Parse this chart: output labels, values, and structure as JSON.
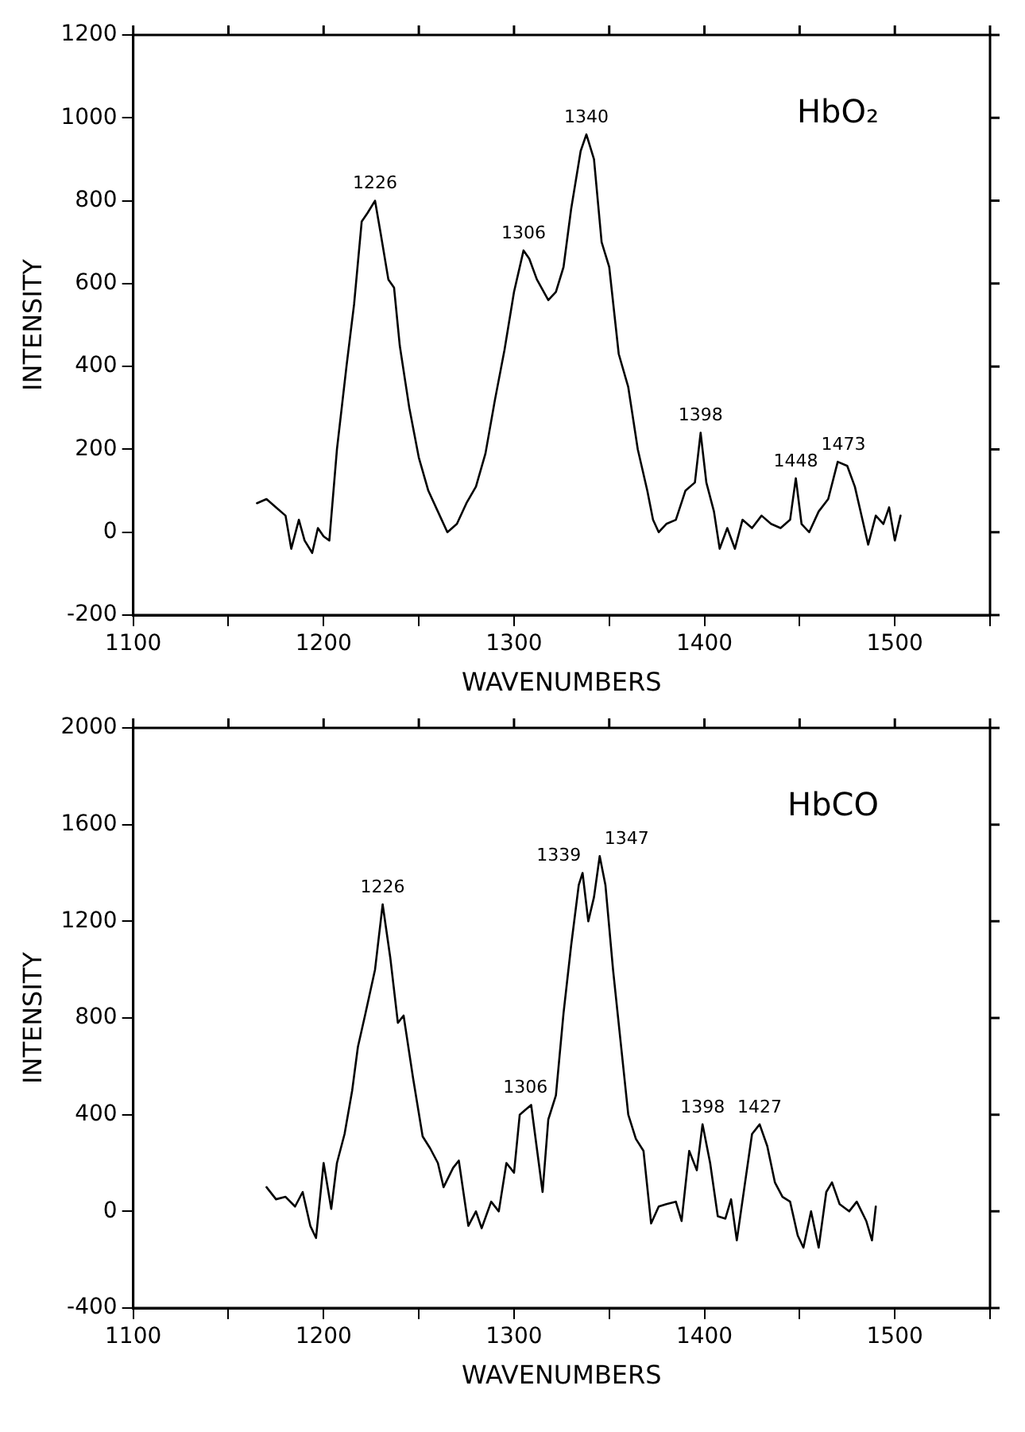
{
  "chart_data": [
    {
      "type": "line",
      "title": "HbO₂",
      "xlabel": "WAVENUMBERS",
      "ylabel": "INTENSITY",
      "xlim": [
        1100,
        1550
      ],
      "xticks": [
        1100,
        {
          "value": 1150,
          "label": null
        },
        1200,
        {
          "value": 1250,
          "label": null
        },
        1300,
        {
          "value": 1350,
          "label": null
        },
        1400,
        {
          "value": 1450,
          "label": null
        },
        1500,
        {
          "value": 1550,
          "label": null
        }
      ],
      "ylim": [
        -200,
        1200
      ],
      "yticks": [
        -200,
        0,
        200,
        400,
        600,
        800,
        1000,
        1200
      ],
      "grid": false,
      "legend": false,
      "series": [
        {
          "color": "#000000",
          "x": [
            1165,
            1170,
            1175,
            1180,
            1183,
            1187,
            1190,
            1194,
            1197,
            1200,
            1203,
            1207,
            1212,
            1216,
            1220,
            1223,
            1227,
            1230,
            1234,
            1237,
            1240,
            1245,
            1250,
            1255,
            1260,
            1265,
            1270,
            1275,
            1280,
            1285,
            1290,
            1295,
            1300,
            1305,
            1308,
            1312,
            1318,
            1322,
            1326,
            1330,
            1335,
            1338,
            1342,
            1346,
            1350,
            1355,
            1360,
            1365,
            1370,
            1373,
            1376,
            1380,
            1385,
            1390,
            1395,
            1398,
            1401,
            1405,
            1408,
            1412,
            1416,
            1420,
            1425,
            1430,
            1435,
            1440,
            1445,
            1448,
            1451,
            1455,
            1460,
            1465,
            1470,
            1475,
            1479,
            1483,
            1486,
            1490,
            1494,
            1497,
            1500,
            1503
          ],
          "values": [
            70,
            80,
            60,
            40,
            -40,
            30,
            -20,
            -50,
            10,
            -10,
            -20,
            200,
            400,
            550,
            750,
            770,
            800,
            720,
            610,
            590,
            450,
            300,
            180,
            100,
            50,
            0,
            20,
            70,
            110,
            190,
            320,
            440,
            580,
            680,
            660,
            610,
            560,
            580,
            640,
            780,
            920,
            960,
            900,
            700,
            640,
            430,
            350,
            200,
            100,
            30,
            0,
            20,
            30,
            100,
            120,
            240,
            120,
            50,
            -40,
            10,
            -40,
            30,
            10,
            40,
            20,
            10,
            30,
            130,
            20,
            0,
            50,
            80,
            170,
            160,
            110,
            30,
            -30,
            40,
            20,
            60,
            -20,
            40
          ]
        }
      ],
      "annotations": [
        {
          "text": "1226",
          "x": 1227,
          "y": 800
        },
        {
          "text": "1306",
          "x": 1305,
          "y": 680
        },
        {
          "text": "1340",
          "x": 1338,
          "y": 960
        },
        {
          "text": "1398",
          "x": 1398,
          "y": 240
        },
        {
          "text": "1448",
          "x": 1448,
          "y": 130
        },
        {
          "text": "1473",
          "x": 1473,
          "y": 170
        }
      ]
    },
    {
      "type": "line",
      "title": "HbCO",
      "xlabel": "WAVENUMBERS",
      "ylabel": "INTENSITY",
      "xlim": [
        1100,
        1550
      ],
      "xticks": [
        1100,
        {
          "value": 1150,
          "label": null
        },
        1200,
        {
          "value": 1250,
          "label": null
        },
        1300,
        {
          "value": 1350,
          "label": null
        },
        1400,
        {
          "value": 1450,
          "label": null
        },
        1500,
        {
          "value": 1550,
          "label": null
        }
      ],
      "ylim": [
        -400,
        2000
      ],
      "yticks": [
        -400,
        0,
        400,
        800,
        1200,
        1600,
        2000
      ],
      "grid": false,
      "legend": false,
      "series": [
        {
          "color": "#000000",
          "x": [
            1170,
            1175,
            1180,
            1185,
            1189,
            1193,
            1196,
            1200,
            1204,
            1207,
            1211,
            1215,
            1218,
            1222,
            1227,
            1231,
            1235,
            1239,
            1242,
            1247,
            1252,
            1256,
            1260,
            1263,
            1268,
            1271,
            1276,
            1280,
            1283,
            1288,
            1292,
            1296,
            1300,
            1303,
            1306,
            1309,
            1313,
            1315,
            1318,
            1322,
            1326,
            1330,
            1334,
            1336,
            1339,
            1342,
            1345,
            1348,
            1352,
            1356,
            1360,
            1364,
            1368,
            1372,
            1376,
            1380,
            1385,
            1388,
            1392,
            1396,
            1399,
            1403,
            1407,
            1411,
            1414,
            1417,
            1421,
            1425,
            1429,
            1433,
            1437,
            1441,
            1445,
            1449,
            1452,
            1456,
            1460,
            1464,
            1467,
            1471,
            1476,
            1480,
            1485,
            1488,
            1490
          ],
          "values": [
            100,
            50,
            60,
            20,
            80,
            -60,
            -110,
            200,
            10,
            200,
            320,
            500,
            680,
            820,
            1000,
            1270,
            1050,
            780,
            810,
            550,
            310,
            260,
            200,
            100,
            180,
            210,
            -60,
            0,
            -70,
            40,
            0,
            200,
            160,
            400,
            420,
            440,
            200,
            80,
            380,
            480,
            820,
            1100,
            1350,
            1400,
            1200,
            1300,
            1470,
            1350,
            1000,
            700,
            400,
            300,
            250,
            -50,
            20,
            30,
            40,
            -40,
            250,
            170,
            360,
            200,
            -20,
            -30,
            50,
            -120,
            100,
            320,
            360,
            270,
            120,
            60,
            40,
            -100,
            -150,
            0,
            -150,
            80,
            120,
            30,
            0,
            40,
            -40,
            -120,
            20
          ]
        }
      ],
      "annotations": [
        {
          "text": "1226",
          "x": 1231,
          "y": 1270
        },
        {
          "text": "1306",
          "x": 1306,
          "y": 440
        },
        {
          "text": "1339",
          "x": 1336,
          "y": 1400
        },
        {
          "text": "1347",
          "x": 1345,
          "y": 1470
        },
        {
          "text": "1398",
          "x": 1399,
          "y": 360
        },
        {
          "text": "1427",
          "x": 1429,
          "y": 360
        }
      ]
    }
  ]
}
